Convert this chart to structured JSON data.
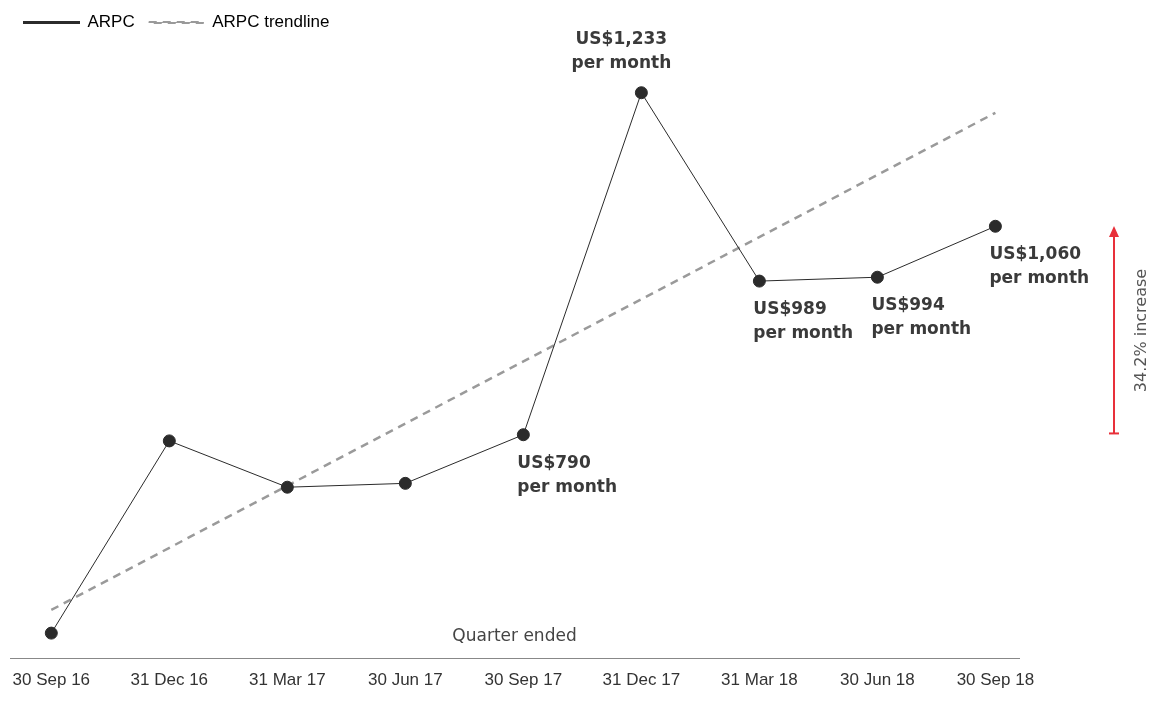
{
  "chart_data": {
    "type": "line",
    "xlabel": "Quarter ended",
    "categories": [
      "30 Sep 16",
      "31 Dec 16",
      "31 Mar 17",
      "30 Jun 17",
      "30 Sep 17",
      "31 Dec 17",
      "31 Mar 18",
      "30 Jun 18",
      "30 Sep 18"
    ],
    "series": [
      {
        "name": "ARPC",
        "color": "#2b2b2b",
        "marker": "circle",
        "line_style": "solid",
        "values": [
          533,
          782,
          722,
          727,
          790,
          1233,
          989,
          994,
          1060
        ],
        "value_labels": [
          null,
          null,
          null,
          null,
          "US$790 per month",
          "US$1,233 per month",
          "US$989 per month",
          "US$994 per month",
          "US$1,060 per month"
        ]
      },
      {
        "name": "ARPC trendline",
        "color": "#9a9a9a",
        "marker": "none",
        "line_style": "dashed",
        "x": [
          "30 Sep 16",
          "30 Sep 18"
        ],
        "values": [
          563,
          1207
        ]
      }
    ],
    "annotations": [
      "34.2% increase"
    ],
    "legend": "top left"
  }
}
